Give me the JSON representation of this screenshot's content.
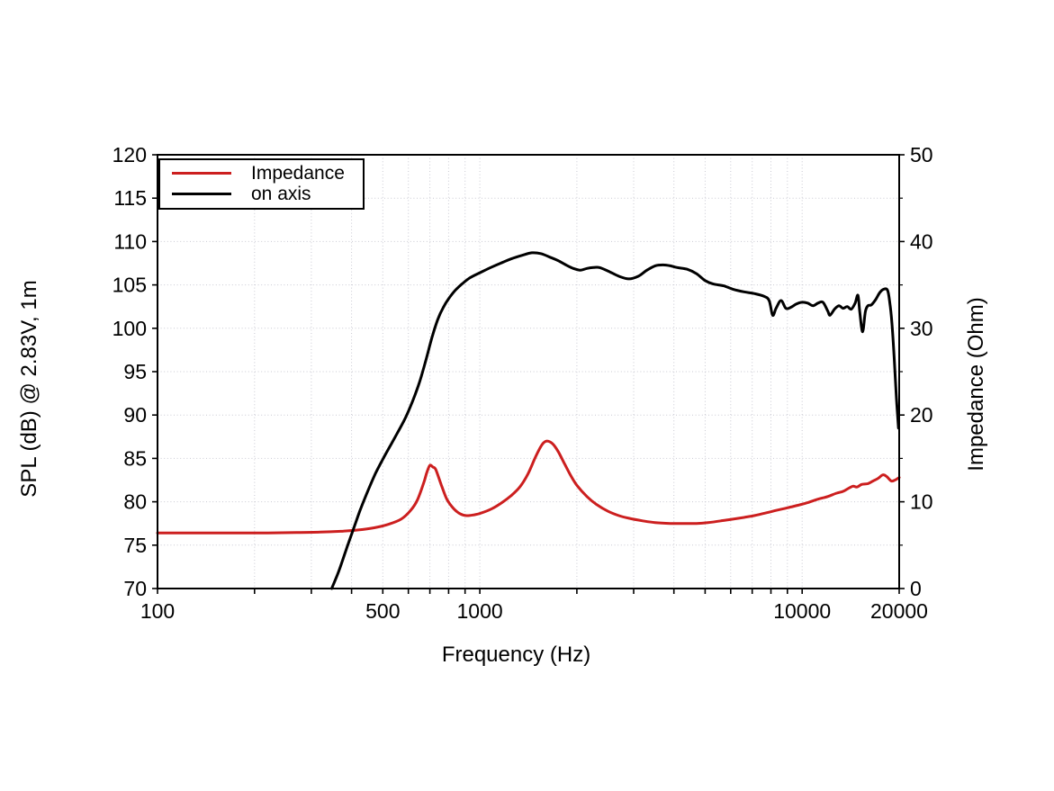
{
  "chart_data": {
    "type": "line",
    "title": "",
    "grid": {
      "show": true,
      "style": "dotted"
    },
    "x_axis": {
      "label": "Frequency (Hz)",
      "scale": "log",
      "min": 100,
      "max": 20000,
      "labeled_ticks": [
        {
          "v": 100,
          "label": "100"
        },
        {
          "v": 500,
          "label": "500"
        },
        {
          "v": 1000,
          "label": "1000"
        },
        {
          "v": 10000,
          "label": "10000"
        },
        {
          "v": 20000,
          "label": "20000"
        }
      ]
    },
    "y_axis": {
      "label": "SPL (dB) @ 2.83V, 1m",
      "min": 70,
      "max": 120,
      "labeled_ticks": [
        {
          "v": 70,
          "label": "70"
        },
        {
          "v": 75,
          "label": "75"
        },
        {
          "v": 80,
          "label": "80"
        },
        {
          "v": 85,
          "label": "85"
        },
        {
          "v": 90,
          "label": "90"
        },
        {
          "v": 95,
          "label": "95"
        },
        {
          "v": 100,
          "label": "100"
        },
        {
          "v": 105,
          "label": "105"
        },
        {
          "v": 110,
          "label": "110"
        },
        {
          "v": 115,
          "label": "115"
        },
        {
          "v": 120,
          "label": "120"
        }
      ]
    },
    "y2_axis": {
      "label": "Impedance (Ohm)",
      "min": 0,
      "max": 50,
      "labeled_ticks": [
        {
          "v": 0,
          "label": "0"
        },
        {
          "v": 10,
          "label": "10"
        },
        {
          "v": 20,
          "label": "20"
        },
        {
          "v": 30,
          "label": "30"
        },
        {
          "v": 40,
          "label": "40"
        },
        {
          "v": 50,
          "label": "50"
        }
      ],
      "minor_tick_values": [
        5,
        15,
        25,
        35,
        45
      ]
    },
    "legend": {
      "position": "top-left",
      "entries": [
        {
          "label": "Impedance",
          "color": "#cc1f1f"
        },
        {
          "label": "on axis",
          "color": "#000000"
        }
      ]
    },
    "series": [
      {
        "name": "Impedance",
        "axis": "y2",
        "color": "#cc1f1f",
        "points": [
          [
            100,
            6.4
          ],
          [
            130,
            6.4
          ],
          [
            170,
            6.4
          ],
          [
            220,
            6.4
          ],
          [
            270,
            6.45
          ],
          [
            320,
            6.5
          ],
          [
            370,
            6.6
          ],
          [
            420,
            6.75
          ],
          [
            470,
            7.0
          ],
          [
            520,
            7.4
          ],
          [
            570,
            8.0
          ],
          [
            610,
            9.0
          ],
          [
            640,
            10.2
          ],
          [
            670,
            12.2
          ],
          [
            685,
            13.4
          ],
          [
            700,
            14.2
          ],
          [
            715,
            14.0
          ],
          [
            730,
            13.7
          ],
          [
            760,
            11.9
          ],
          [
            790,
            10.3
          ],
          [
            830,
            9.2
          ],
          [
            870,
            8.6
          ],
          [
            910,
            8.4
          ],
          [
            960,
            8.5
          ],
          [
            1010,
            8.7
          ],
          [
            1090,
            9.2
          ],
          [
            1170,
            9.9
          ],
          [
            1250,
            10.7
          ],
          [
            1330,
            11.7
          ],
          [
            1410,
            13.2
          ],
          [
            1490,
            15.2
          ],
          [
            1560,
            16.6
          ],
          [
            1615,
            17.0
          ],
          [
            1680,
            16.7
          ],
          [
            1750,
            15.8
          ],
          [
            1830,
            14.4
          ],
          [
            1910,
            13.1
          ],
          [
            2000,
            11.9
          ],
          [
            2150,
            10.6
          ],
          [
            2300,
            9.7
          ],
          [
            2500,
            8.9
          ],
          [
            2700,
            8.4
          ],
          [
            2900,
            8.1
          ],
          [
            3200,
            7.8
          ],
          [
            3500,
            7.6
          ],
          [
            3900,
            7.5
          ],
          [
            4300,
            7.5
          ],
          [
            4700,
            7.5
          ],
          [
            5100,
            7.6
          ],
          [
            5600,
            7.8
          ],
          [
            6100,
            8.0
          ],
          [
            6600,
            8.2
          ],
          [
            7100,
            8.4
          ],
          [
            7700,
            8.7
          ],
          [
            8300,
            9.0
          ],
          [
            9000,
            9.3
          ],
          [
            9700,
            9.6
          ],
          [
            10400,
            9.9
          ],
          [
            11200,
            10.3
          ],
          [
            12000,
            10.6
          ],
          [
            12800,
            11.0
          ],
          [
            13400,
            11.2
          ],
          [
            14000,
            11.6
          ],
          [
            14400,
            11.8
          ],
          [
            14800,
            11.7
          ],
          [
            15300,
            12.0
          ],
          [
            16000,
            12.1
          ],
          [
            16600,
            12.4
          ],
          [
            17200,
            12.7
          ],
          [
            17800,
            13.1
          ],
          [
            18300,
            12.9
          ],
          [
            18900,
            12.4
          ],
          [
            19400,
            12.5
          ],
          [
            20000,
            12.8
          ]
        ]
      },
      {
        "name": "on axis",
        "axis": "y",
        "color": "#000000",
        "points": [
          [
            347,
            70
          ],
          [
            365,
            72
          ],
          [
            385,
            74.5
          ],
          [
            405,
            76.8
          ],
          [
            425,
            79.0
          ],
          [
            450,
            81.3
          ],
          [
            475,
            83.3
          ],
          [
            500,
            84.9
          ],
          [
            530,
            86.6
          ],
          [
            560,
            88.2
          ],
          [
            590,
            89.8
          ],
          [
            620,
            91.7
          ],
          [
            650,
            93.8
          ],
          [
            680,
            96.3
          ],
          [
            710,
            98.9
          ],
          [
            740,
            101.0
          ],
          [
            770,
            102.4
          ],
          [
            800,
            103.4
          ],
          [
            840,
            104.4
          ],
          [
            880,
            105.1
          ],
          [
            930,
            105.8
          ],
          [
            1000,
            106.4
          ],
          [
            1080,
            107.0
          ],
          [
            1160,
            107.5
          ],
          [
            1250,
            108.0
          ],
          [
            1350,
            108.4
          ],
          [
            1450,
            108.7
          ],
          [
            1550,
            108.6
          ],
          [
            1650,
            108.2
          ],
          [
            1750,
            107.8
          ],
          [
            1850,
            107.3
          ],
          [
            1950,
            106.9
          ],
          [
            2050,
            106.7
          ],
          [
            2150,
            106.9
          ],
          [
            2250,
            107.0
          ],
          [
            2350,
            107.0
          ],
          [
            2500,
            106.6
          ],
          [
            2700,
            106.0
          ],
          [
            2900,
            105.7
          ],
          [
            3100,
            106.0
          ],
          [
            3300,
            106.7
          ],
          [
            3500,
            107.2
          ],
          [
            3700,
            107.3
          ],
          [
            3900,
            107.2
          ],
          [
            4100,
            107.0
          ],
          [
            4400,
            106.8
          ],
          [
            4700,
            106.3
          ],
          [
            5000,
            105.5
          ],
          [
            5300,
            105.1
          ],
          [
            5700,
            104.9
          ],
          [
            6100,
            104.5
          ],
          [
            6600,
            104.2
          ],
          [
            7100,
            104.0
          ],
          [
            7600,
            103.7
          ],
          [
            7900,
            103.2
          ],
          [
            8100,
            101.5
          ],
          [
            8300,
            102.3
          ],
          [
            8600,
            103.2
          ],
          [
            8900,
            102.3
          ],
          [
            9200,
            102.4
          ],
          [
            9600,
            102.8
          ],
          [
            10000,
            103.0
          ],
          [
            10400,
            102.9
          ],
          [
            10800,
            102.6
          ],
          [
            11200,
            102.9
          ],
          [
            11600,
            103.0
          ],
          [
            12000,
            102.0
          ],
          [
            12200,
            101.5
          ],
          [
            12600,
            102.2
          ],
          [
            13000,
            102.6
          ],
          [
            13400,
            102.3
          ],
          [
            13800,
            102.5
          ],
          [
            14200,
            102.2
          ],
          [
            14600,
            102.9
          ],
          [
            14900,
            103.8
          ],
          [
            15100,
            101.8
          ],
          [
            15400,
            99.6
          ],
          [
            15700,
            101.9
          ],
          [
            16000,
            102.6
          ],
          [
            16400,
            102.7
          ],
          [
            16900,
            103.3
          ],
          [
            17400,
            104.1
          ],
          [
            17900,
            104.5
          ],
          [
            18400,
            104.4
          ],
          [
            18700,
            103.0
          ],
          [
            19000,
            100.5
          ],
          [
            19300,
            96.5
          ],
          [
            19600,
            92.0
          ],
          [
            19900,
            88.5
          ]
        ]
      }
    ],
    "colors": {
      "grid": "#c9c9d2",
      "axis": "#000000",
      "background": "#ffffff"
    }
  }
}
